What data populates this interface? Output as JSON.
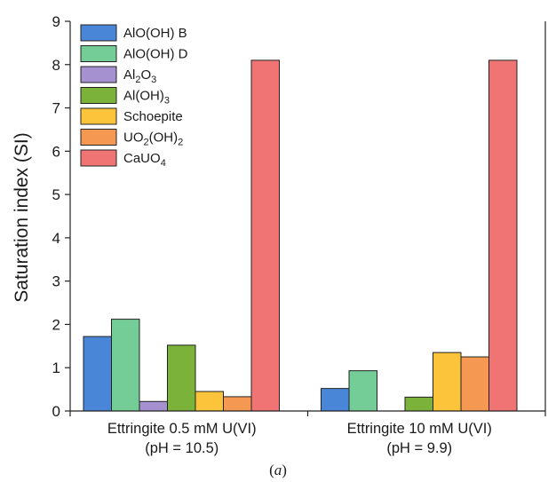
{
  "chart_data": {
    "type": "bar",
    "title": "",
    "xlabel": "",
    "ylabel": "Saturation index (SI)",
    "ylim": [
      0,
      9
    ],
    "yticks": [
      "0",
      "1",
      "2",
      "3",
      "4",
      "5",
      "6",
      "7",
      "8",
      "9"
    ],
    "grid": false,
    "legend_position": "top-left",
    "categories": [
      {
        "line1": "Ettringite 0.5 mM U(VI)",
        "line2": "(pH = 10.5)"
      },
      {
        "line1": "Ettringite 10 mM U(VI)",
        "line2": "(pH = 9.9)"
      }
    ],
    "series": [
      {
        "name": "AlO(OH) B",
        "parts": [
          {
            "t": "AlO(OH) B",
            "sub": ""
          }
        ],
        "color": "#4a86d8",
        "values": [
          1.72,
          0.52
        ]
      },
      {
        "name": "AlO(OH) D",
        "parts": [
          {
            "t": "AlO(OH) D",
            "sub": ""
          }
        ],
        "color": "#74cc96",
        "values": [
          2.12,
          0.93
        ]
      },
      {
        "name": "Al2O3",
        "parts": [
          {
            "t": "Al",
            "sub": "2"
          },
          {
            "t": "O",
            "sub": "3"
          }
        ],
        "color": "#a591cf",
        "values": [
          0.22,
          0
        ]
      },
      {
        "name": "Al(OH)3",
        "parts": [
          {
            "t": "Al(OH)",
            "sub": "3"
          }
        ],
        "color": "#7bb23a",
        "values": [
          1.52,
          0.32
        ]
      },
      {
        "name": "Schoepite",
        "parts": [
          {
            "t": "Schoepite",
            "sub": ""
          }
        ],
        "color": "#fcc43a",
        "values": [
          0.45,
          1.35
        ]
      },
      {
        "name": "UO2(OH)2",
        "parts": [
          {
            "t": "UO",
            "sub": "2"
          },
          {
            "t": "(OH)",
            "sub": "2"
          }
        ],
        "color": "#f49852",
        "values": [
          0.33,
          1.25
        ]
      },
      {
        "name": "CaUO4",
        "parts": [
          {
            "t": "CaUO",
            "sub": "4"
          }
        ],
        "color": "#f07474",
        "values": [
          8.1,
          8.1
        ]
      }
    ]
  },
  "caption": {
    "prefix": "(",
    "letter": "a",
    "suffix": ")"
  }
}
